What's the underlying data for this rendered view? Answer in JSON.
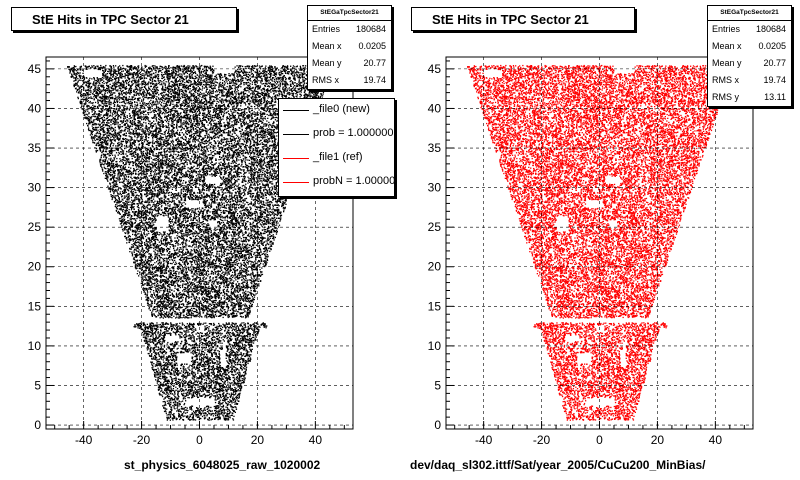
{
  "chart_data": [
    {
      "type": "scatter",
      "title": "StE Hits in TPC Sector 21",
      "caption": "st_physics_6048025_raw_1020002",
      "xlim": [
        -53,
        53
      ],
      "ylim": [
        -0.5,
        46.5
      ],
      "xticks": [
        -40,
        -20,
        0,
        20,
        40
      ],
      "yticks": [
        0,
        5,
        10,
        15,
        20,
        25,
        30,
        35,
        40,
        45
      ],
      "grid": true,
      "point_color": "#000000",
      "series": [
        {
          "name": "_file0 (new)",
          "color": "#000000"
        }
      ],
      "stats": {
        "title": "StEGaTpcSector21",
        "rows": [
          {
            "label": "Entries",
            "value": "180684"
          },
          {
            "label": "Mean x",
            "value": "0.0205"
          },
          {
            "label": "Mean y",
            "value": "20.77"
          },
          {
            "label": "RMS x",
            "value": "19.74"
          }
        ]
      },
      "legend": {
        "position": "top-right",
        "entries": [
          {
            "label": "_file0 (new)",
            "color": "#000000"
          },
          {
            "label": "prob = 1.000000",
            "color": "#000000"
          },
          {
            "label": "_file1 (ref)",
            "color": "#ff0000"
          },
          {
            "label": "probN = 1.000000",
            "color": "#ff0000"
          }
        ]
      }
    },
    {
      "type": "scatter",
      "title": "StE Hits in TPC Sector 21",
      "caption": "dev/daq_sl302.ittf/Sat/year_2005/CuCu200_MinBias/",
      "xlim": [
        -53,
        53
      ],
      "ylim": [
        -0.5,
        46.5
      ],
      "xticks": [
        -40,
        -20,
        0,
        20,
        40
      ],
      "yticks": [
        0,
        5,
        10,
        15,
        20,
        25,
        30,
        35,
        40,
        45
      ],
      "grid": true,
      "point_color": "#ff0000",
      "series": [
        {
          "name": "_file1 (ref)",
          "color": "#ff0000"
        }
      ],
      "stats": {
        "title": "StEGaTpcSector21",
        "rows": [
          {
            "label": "Entries",
            "value": "180684"
          },
          {
            "label": "Mean x",
            "value": "0.0205"
          },
          {
            "label": "Mean y",
            "value": "20.77"
          },
          {
            "label": "RMS x",
            "value": "19.74"
          },
          {
            "label": "RMS y",
            "value": "13.11"
          }
        ]
      }
    }
  ]
}
